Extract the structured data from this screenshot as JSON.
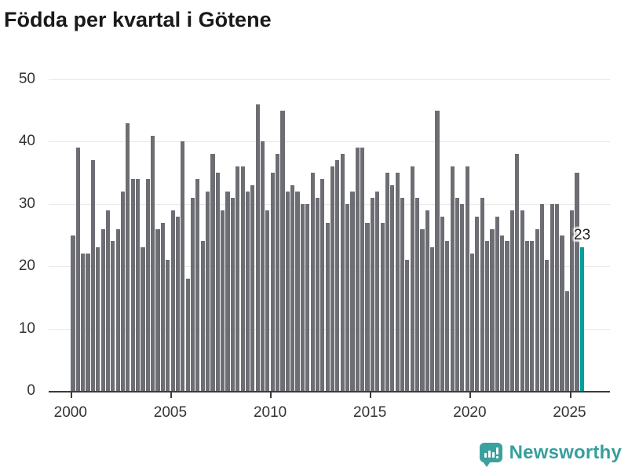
{
  "title": "Födda per kvartal i Götene",
  "annotation": {
    "label": "23"
  },
  "branding": {
    "logo_text": "Newsworthy",
    "logo_icon": "bar-chart-speech-bubble-icon",
    "brand_color": "#369f9d"
  },
  "colors": {
    "bar": "#6d6d74",
    "highlight": "#00a09b",
    "grid": "#e9e9e9",
    "axis": "#3b3b3b",
    "tick_label": "#333333",
    "title": "#1a1a1a"
  },
  "chart_data": {
    "type": "bar",
    "title": "Födda per kvartal i Götene",
    "xlabel": "",
    "ylabel": "",
    "ylim": [
      0,
      50
    ],
    "yticks": [
      0,
      10,
      20,
      30,
      40,
      50
    ],
    "xticks": [
      "2000",
      "2005",
      "2010",
      "2015",
      "2020",
      "2025"
    ],
    "grid": "horizontal",
    "legend": "none",
    "highlight_index": 102,
    "highlight_label": "23",
    "x": [
      "2000 Q1",
      "2000 Q2",
      "2000 Q3",
      "2000 Q4",
      "2001 Q1",
      "2001 Q2",
      "2001 Q3",
      "2001 Q4",
      "2002 Q1",
      "2002 Q2",
      "2002 Q3",
      "2002 Q4",
      "2003 Q1",
      "2003 Q2",
      "2003 Q3",
      "2003 Q4",
      "2004 Q1",
      "2004 Q2",
      "2004 Q3",
      "2004 Q4",
      "2005 Q1",
      "2005 Q2",
      "2005 Q3",
      "2005 Q4",
      "2006 Q1",
      "2006 Q2",
      "2006 Q3",
      "2006 Q4",
      "2007 Q1",
      "2007 Q2",
      "2007 Q3",
      "2007 Q4",
      "2008 Q1",
      "2008 Q2",
      "2008 Q3",
      "2008 Q4",
      "2009 Q1",
      "2009 Q2",
      "2009 Q3",
      "2009 Q4",
      "2010 Q1",
      "2010 Q2",
      "2010 Q3",
      "2010 Q4",
      "2011 Q1",
      "2011 Q2",
      "2011 Q3",
      "2011 Q4",
      "2012 Q1",
      "2012 Q2",
      "2012 Q3",
      "2012 Q4",
      "2013 Q1",
      "2013 Q2",
      "2013 Q3",
      "2013 Q4",
      "2014 Q1",
      "2014 Q2",
      "2014 Q3",
      "2014 Q4",
      "2015 Q1",
      "2015 Q2",
      "2015 Q3",
      "2015 Q4",
      "2016 Q1",
      "2016 Q2",
      "2016 Q3",
      "2016 Q4",
      "2017 Q1",
      "2017 Q2",
      "2017 Q3",
      "2017 Q4",
      "2018 Q1",
      "2018 Q2",
      "2018 Q3",
      "2018 Q4",
      "2019 Q1",
      "2019 Q2",
      "2019 Q3",
      "2019 Q4",
      "2020 Q1",
      "2020 Q2",
      "2020 Q3",
      "2020 Q4",
      "2021 Q1",
      "2021 Q2",
      "2021 Q3",
      "2021 Q4",
      "2022 Q1",
      "2022 Q2",
      "2022 Q3",
      "2022 Q4",
      "2023 Q1",
      "2023 Q2",
      "2023 Q3",
      "2023 Q4",
      "2024 Q1",
      "2024 Q2",
      "2024 Q3",
      "2024 Q4",
      "2025 Q1",
      "2025 Q2",
      "2025 Q3"
    ],
    "values": [
      25,
      39,
      22,
      22,
      37,
      23,
      26,
      29,
      24,
      26,
      32,
      43,
      34,
      34,
      23,
      34,
      41,
      26,
      27,
      21,
      29,
      28,
      40,
      18,
      31,
      34,
      24,
      32,
      38,
      35,
      29,
      32,
      31,
      36,
      36,
      32,
      33,
      46,
      40,
      29,
      35,
      38,
      45,
      32,
      33,
      32,
      30,
      30,
      35,
      31,
      34,
      27,
      36,
      37,
      38,
      30,
      32,
      39,
      39,
      27,
      31,
      32,
      27,
      35,
      33,
      35,
      31,
      21,
      36,
      31,
      26,
      29,
      23,
      45,
      28,
      24,
      36,
      31,
      30,
      36,
      22,
      28,
      31,
      24,
      26,
      28,
      25,
      24,
      29,
      38,
      29,
      24,
      24,
      26,
      30,
      21,
      30,
      30,
      25,
      16,
      29,
      35,
      23
    ]
  }
}
